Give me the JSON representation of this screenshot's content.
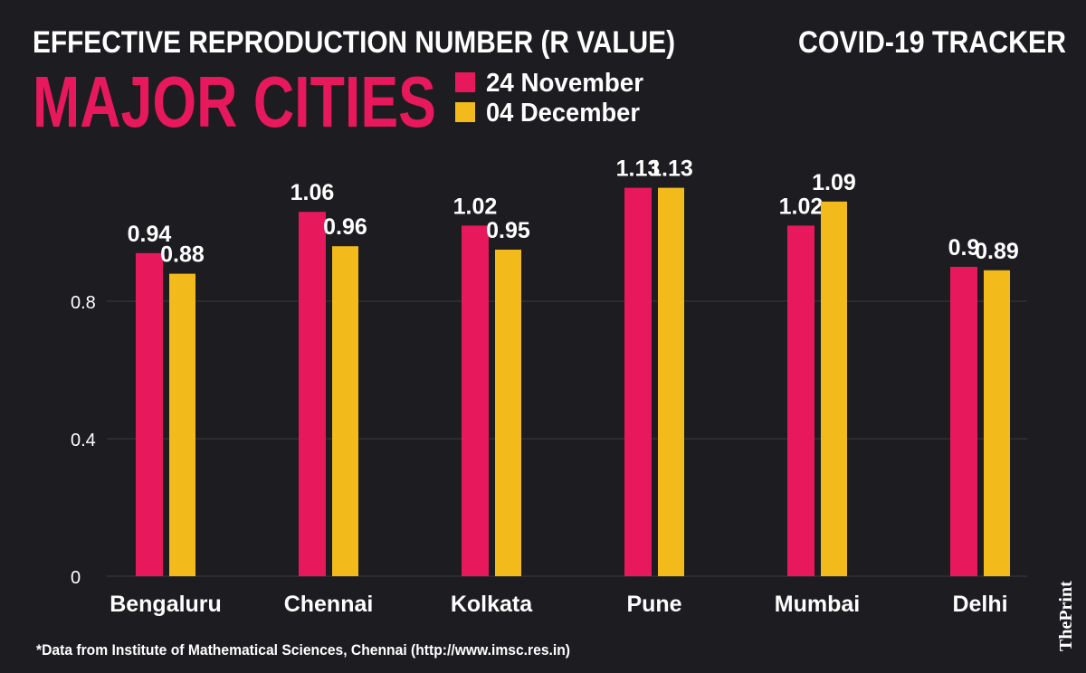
{
  "chart_data": {
    "type": "bar",
    "title": "EFFECTIVE REPRODUCTION NUMBER (R VALUE)",
    "subtitle": "MAJOR CITIES",
    "tracker_label": "COVID-19 TRACKER",
    "source": "*Data from Institute of Mathematical Sciences, Chennai (http://www.imsc.res.in)",
    "brand": "ThePrint",
    "categories": [
      "Bengaluru",
      "Chennai",
      "Kolkata",
      "Pune",
      "Mumbai",
      "Delhi"
    ],
    "series": [
      {
        "name": "24 November",
        "color": "#e8185c",
        "values": [
          0.94,
          1.06,
          1.02,
          1.13,
          1.02,
          0.9
        ]
      },
      {
        "name": "04 December",
        "color": "#f3ba1b",
        "values": [
          0.88,
          0.96,
          0.95,
          1.13,
          1.09,
          0.89
        ]
      }
    ],
    "ylim": [
      0,
      1.2
    ],
    "yticks": [
      0,
      0.4,
      0.8
    ],
    "grid": true
  }
}
